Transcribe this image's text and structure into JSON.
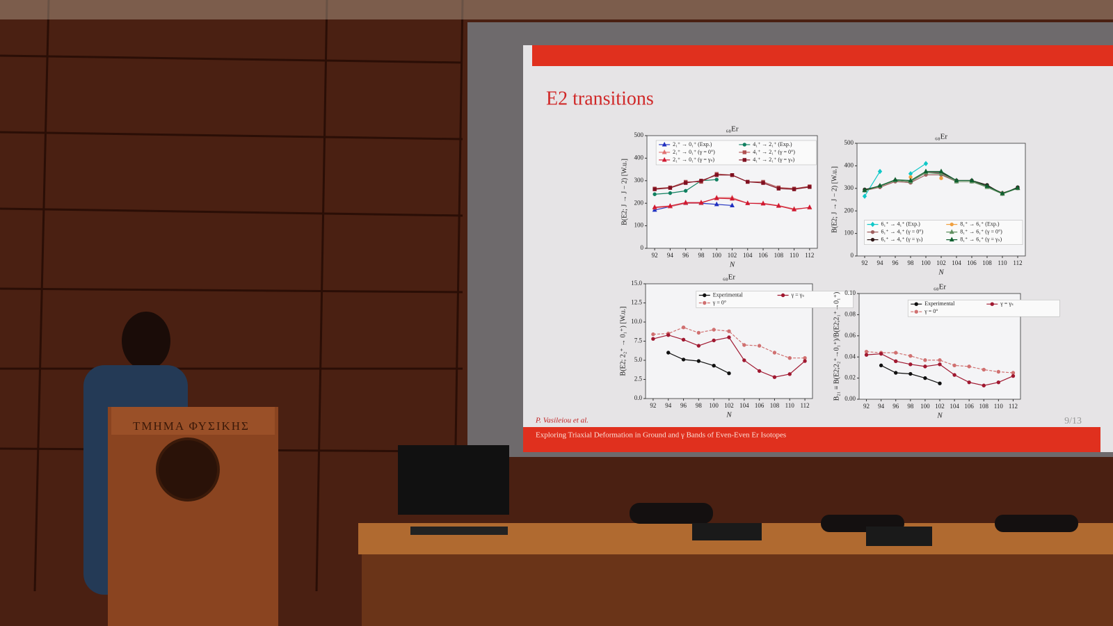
{
  "slide": {
    "title": "E2 transitions",
    "author": "P. Vasileiou et al.",
    "page": "9/13",
    "footer": "Exploring Triaxial Deformation in Ground and γ Bands of Even-Even Er Isotopes"
  },
  "podium": {
    "label": "ΤΜΗΜΑ ΦΥΣΙΚΗΣ"
  },
  "chart_data": [
    {
      "type": "line",
      "title": "₆₈Er",
      "ylabel": "B(E2; J → J − 2) [W.u.]",
      "xlabel": "N",
      "x": [
        92,
        94,
        96,
        98,
        100,
        102,
        104,
        106,
        108,
        110,
        112
      ],
      "xlim": [
        91,
        113
      ],
      "xticks": [
        92,
        94,
        96,
        98,
        100,
        102,
        104,
        106,
        108,
        110,
        112
      ],
      "ylim": [
        0,
        500
      ],
      "yticks": [
        0,
        100,
        200,
        300,
        400,
        500
      ],
      "series": [
        {
          "name": "2₁⁺ → 0₁⁺ (Exp.)",
          "color": "#2030c0",
          "marker": "triangle",
          "dashed": false,
          "values": [
            170,
            185,
            200,
            200,
            195,
            190,
            null,
            null,
            null,
            null,
            null
          ]
        },
        {
          "name": "2₁⁺ → 0₁⁺ (γ = 0°)",
          "color": "#e07070",
          "marker": "triangle",
          "dashed": false,
          "values": [
            180,
            185,
            200,
            200,
            225,
            225,
            200,
            200,
            190,
            175,
            180
          ]
        },
        {
          "name": "2₁⁺ → 0₁⁺ (γ = γₛ)",
          "color": "#d01830",
          "marker": "triangle",
          "dashed": false,
          "values": [
            182,
            188,
            203,
            203,
            222,
            220,
            200,
            198,
            188,
            172,
            182
          ]
        },
        {
          "name": "4₁⁺ → 2₁⁺ (Exp.)",
          "color": "#108060",
          "marker": "circle",
          "dashed": false,
          "values": [
            240,
            245,
            255,
            300,
            305,
            null,
            null,
            null,
            null,
            null,
            null
          ]
        },
        {
          "name": "4₁⁺ → 2₁⁺ (γ = 0°)",
          "color": "#b05050",
          "marker": "square",
          "dashed": false,
          "values": [
            265,
            270,
            295,
            295,
            330,
            325,
            295,
            295,
            270,
            265,
            275
          ]
        },
        {
          "name": "4₁⁺ → 2₁⁺ (γ = γₛ)",
          "color": "#801020",
          "marker": "square",
          "dashed": false,
          "values": [
            262,
            268,
            290,
            300,
            325,
            325,
            295,
            290,
            265,
            262,
            272
          ]
        }
      ]
    },
    {
      "type": "line",
      "title": "₆₈Er",
      "ylabel": "B(E2; J → J − 2) [W.u.]",
      "xlabel": "N",
      "x": [
        92,
        94,
        96,
        98,
        100,
        102,
        104,
        106,
        108,
        110,
        112
      ],
      "xlim": [
        91,
        113
      ],
      "xticks": [
        92,
        94,
        96,
        98,
        100,
        102,
        104,
        106,
        108,
        110,
        112
      ],
      "ylim": [
        0,
        500
      ],
      "yticks": [
        0,
        100,
        200,
        300,
        400,
        500
      ],
      "series": [
        {
          "name": "6₁⁺ → 4₁⁺ (Exp.)",
          "color": "#10c8c8",
          "marker": "diamond",
          "dashed": false,
          "values": [
            265,
            375,
            null,
            365,
            410,
            null,
            null,
            null,
            null,
            null,
            null
          ]
        },
        {
          "name": "6₁⁺ → 4₁⁺ (γ = 0°)",
          "color": "#a06060",
          "marker": "circle",
          "dashed": false,
          "values": [
            290,
            305,
            330,
            325,
            360,
            360,
            330,
            330,
            310,
            280,
            300
          ]
        },
        {
          "name": "6₁⁺ → 4₁⁺ (γ = γₛ)",
          "color": "#301818",
          "marker": "circle",
          "dashed": false,
          "values": [
            295,
            310,
            335,
            330,
            370,
            370,
            335,
            335,
            315,
            275,
            305
          ]
        },
        {
          "name": "8₁⁺ → 6₁⁺ (Exp.)",
          "color": "#f0a040",
          "marker": "circle",
          "dashed": false,
          "values": [
            null,
            null,
            null,
            350,
            null,
            345,
            null,
            null,
            null,
            null,
            null
          ]
        },
        {
          "name": "8₁⁺ → 6₁⁺ (γ = 0°)",
          "color": "#609060",
          "marker": "triangle",
          "dashed": false,
          "values": [
            290,
            310,
            335,
            330,
            370,
            365,
            330,
            330,
            305,
            275,
            300
          ]
        },
        {
          "name": "8₁⁺ → 6₁⁺ (γ = γₛ)",
          "color": "#106030",
          "marker": "triangle",
          "dashed": false,
          "values": [
            292,
            312,
            338,
            335,
            375,
            375,
            335,
            335,
            310,
            278,
            302
          ]
        }
      ]
    },
    {
      "type": "line",
      "title": "₆₈Er",
      "ylabel": "B(E2; 2₂⁺ → 0₁⁺) [W.u.]",
      "xlabel": "N",
      "x": [
        92,
        94,
        96,
        98,
        100,
        102,
        104,
        106,
        108,
        110,
        112
      ],
      "xlim": [
        91,
        113
      ],
      "xticks": [
        92,
        94,
        96,
        98,
        100,
        102,
        104,
        106,
        108,
        110,
        112
      ],
      "ylim": [
        0,
        15
      ],
      "yticks": [
        {
          "value": 0,
          "label": "0.0"
        },
        {
          "value": 2.5,
          "label": "2.5"
        },
        {
          "value": 5,
          "label": "5.0"
        },
        {
          "value": 7.5,
          "label": "7.5"
        },
        {
          "value": 10,
          "label": "10.0"
        },
        {
          "value": 12.5,
          "label": "12.5"
        },
        {
          "value": 15,
          "label": "15.0"
        }
      ],
      "series": [
        {
          "name": "Experimental",
          "color": "#101010",
          "marker": "circle",
          "dashed": false,
          "values": [
            null,
            6.0,
            5.1,
            4.9,
            4.3,
            3.3,
            null,
            null,
            null,
            null,
            null
          ]
        },
        {
          "name": "γ = 0°",
          "color": "#d07070",
          "marker": "circle",
          "dashed": true,
          "values": [
            8.4,
            8.5,
            9.3,
            8.6,
            9.0,
            8.8,
            7.0,
            6.9,
            6.0,
            5.3,
            5.3
          ]
        },
        {
          "name": "γ = γₛ",
          "color": "#a01830",
          "marker": "circle",
          "dashed": false,
          "values": [
            7.8,
            8.3,
            7.7,
            6.9,
            7.6,
            8.0,
            5.0,
            3.6,
            2.8,
            3.2,
            4.9
          ]
        }
      ]
    },
    {
      "type": "line",
      "title": "₆₈Er",
      "ylabel": "B₂₁ ≡ B(E2;2₂⁺→0₁⁺)/B(E2;2₁⁺→0₁⁺)",
      "xlabel": "N",
      "x": [
        92,
        94,
        96,
        98,
        100,
        102,
        104,
        106,
        108,
        110,
        112
      ],
      "xlim": [
        91,
        113
      ],
      "xticks": [
        92,
        94,
        96,
        98,
        100,
        102,
        104,
        106,
        108,
        110,
        112
      ],
      "ylim": [
        0,
        0.1
      ],
      "yticks": [
        {
          "value": 0,
          "label": "0.00"
        },
        {
          "value": 0.02,
          "label": "0.02"
        },
        {
          "value": 0.04,
          "label": "0.04"
        },
        {
          "value": 0.06,
          "label": "0.06"
        },
        {
          "value": 0.08,
          "label": "0.08"
        },
        {
          "value": 0.1,
          "label": "0.10"
        }
      ],
      "series": [
        {
          "name": "Experimental",
          "color": "#101010",
          "marker": "circle",
          "dashed": false,
          "values": [
            null,
            0.032,
            0.025,
            0.024,
            0.02,
            0.015,
            null,
            null,
            null,
            null,
            null
          ]
        },
        {
          "name": "γ = 0°",
          "color": "#d07070",
          "marker": "circle",
          "dashed": true,
          "values": [
            0.045,
            0.044,
            0.044,
            0.041,
            0.037,
            0.037,
            0.032,
            0.031,
            0.028,
            0.026,
            0.025
          ]
        },
        {
          "name": "γ = γₛ",
          "color": "#a01830",
          "marker": "circle",
          "dashed": false,
          "values": [
            0.042,
            0.043,
            0.036,
            0.033,
            0.031,
            0.033,
            0.023,
            0.016,
            0.013,
            0.016,
            0.022
          ]
        }
      ]
    }
  ]
}
